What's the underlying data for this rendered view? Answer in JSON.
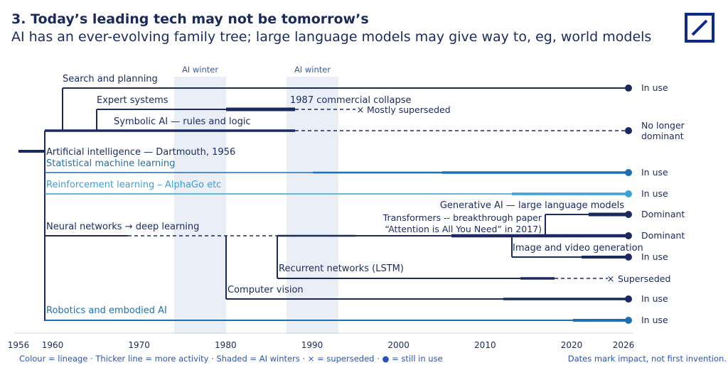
{
  "header": {
    "title": "3. Today’s leading tech may not be tomorrow’s",
    "subtitle": "AI has an ever-evolving family tree; large language models may give way to, eg, world models"
  },
  "footer": {
    "legend": "Colour = lineage · Thicker line = more activity · Shaded = AI winters · × = superseded · ● = still in use",
    "note": "Dates mark impact, not first invention."
  },
  "colors": {
    "navy": "#1a2a5e",
    "blue": "#1f6fb2",
    "lightblue": "#3aa0d8",
    "shade": "#e9eef7"
  },
  "chart_data": {
    "type": "timeline",
    "x_ticks": [
      1956,
      1960,
      1970,
      1980,
      1990,
      2000,
      2010,
      2020,
      2026
    ],
    "shaded": [
      {
        "label": "AI winter",
        "from": 1974,
        "to": 1980
      },
      {
        "label": "AI winter",
        "from": 1987,
        "to": 1993
      }
    ],
    "root": {
      "label": "Artificial intelligence — Dartmouth, 1956",
      "from": 1956,
      "to": 1959
    },
    "lines": [
      {
        "id": "search",
        "label": "Search and planning",
        "lineage": "navy",
        "from": 1962,
        "to": 2026,
        "end": "dot",
        "status": "In use"
      },
      {
        "id": "expert",
        "label": "Expert systems",
        "lineage": "navy",
        "from": 1966,
        "to": 1987,
        "end": "x",
        "status": "Mostly superseded",
        "annotation": "1987  commercial collapse"
      },
      {
        "id": "symbolic",
        "label": "Symbolic AI — rules and logic",
        "lineage": "navy",
        "from": 1959,
        "to": 2026,
        "end": "dot",
        "status": "No longer dominant"
      },
      {
        "id": "statml",
        "label": "Statistical machine learning",
        "lineage": "blue",
        "from": 1959,
        "to": 2026,
        "end": "dot",
        "status": "In use"
      },
      {
        "id": "rl",
        "label": "Reinforcement learning – AlphaGo etc",
        "lineage": "lightblue",
        "from": 1959,
        "to": 2026,
        "end": "dot",
        "status": "In use"
      },
      {
        "id": "genai",
        "label": "Generative AI — large language models",
        "lineage": "navy",
        "from": 2017,
        "to": 2026,
        "end": "dot",
        "status": "Dominant"
      },
      {
        "id": "transformers",
        "label": "Transformers -- breakthrough paper\n“Attention is All You Need” in 2017)",
        "lineage": "navy",
        "from": 1959,
        "to": 2026,
        "end": "dot",
        "status": "Dominant"
      },
      {
        "id": "neural",
        "label": "Neural networks → deep learning",
        "lineage": "navy",
        "from": 1959,
        "to": 2026,
        "end": "dot",
        "status": "Dominant"
      },
      {
        "id": "imagegen",
        "label": "Image and video generation",
        "lineage": "navy",
        "from": 2013,
        "to": 2026,
        "end": "dot",
        "status": "In use"
      },
      {
        "id": "lstm",
        "label": "Recurrent networks (LSTM)",
        "lineage": "navy",
        "from": 1986,
        "to": 2017,
        "end": "x",
        "status": "Superseded"
      },
      {
        "id": "cv",
        "label": "Computer vision",
        "lineage": "navy",
        "from": 1980,
        "to": 2026,
        "end": "dot",
        "status": "In use"
      },
      {
        "id": "robotics",
        "label": "Robotics and embodied AI",
        "lineage": "blue",
        "from": 1959,
        "to": 2026,
        "end": "dot",
        "status": "In use"
      }
    ]
  }
}
